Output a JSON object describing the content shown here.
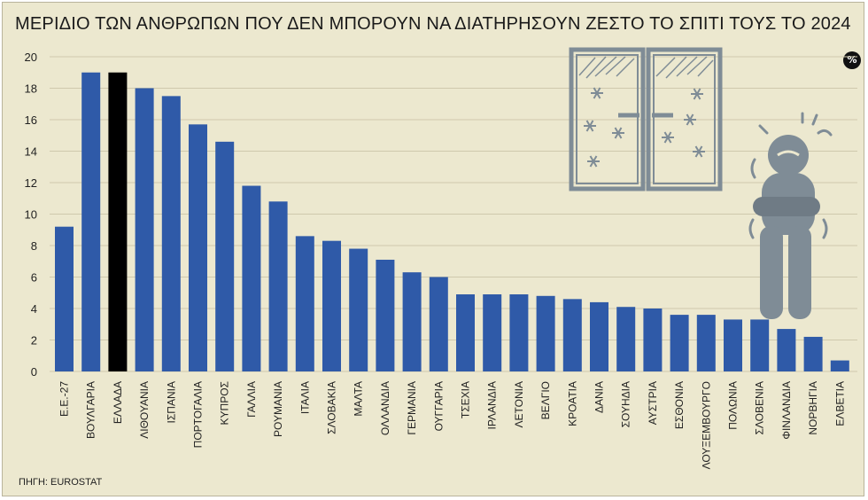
{
  "header": {
    "title": "ΜΕΡΙΔΙΟ ΤΩΝ ΑΝΘΡΩΠΩΝ ΠΟΥ ΔΕΝ ΜΠΟΡΟΥΝ ΝΑ ΔΙΑΤΗΡΗΣΟΥΝ ΖΕΣΤΟ ΤΟ ΣΠΙΤΙ ΤΟΥΣ ΤΟ 2024"
  },
  "footer": {
    "source": "ΠΗΓΗ: EUROSTAT"
  },
  "unit_badge": "%",
  "colors": {
    "bar": "#2f5aa8",
    "highlight": "#000000",
    "background": "#ece8cf",
    "grid": "#cfc9ad",
    "illustration": "#7f8c96"
  },
  "illustration": {
    "icons": [
      "frosted-window-icon",
      "snowflake-icon",
      "cold-person-icon"
    ]
  },
  "chart_data": {
    "type": "bar",
    "title": "ΜΕΡΙΔΙΟ ΤΩΝ ΑΝΘΡΩΠΩΝ ΠΟΥ ΔΕΝ ΜΠΟΡΟΥΝ ΝΑ ΔΙΑΤΗΡΗΣΟΥΝ ΖΕΣΤΟ ΤΟ ΣΠΙΤΙ ΤΟΥΣ ΤΟ 2024",
    "categories": [
      "Ε.Ε.-27",
      "ΒΟΥΛΓΑΡΙΑ",
      "ΕΛΛΑΔΑ",
      "ΛΙΘΟΥΑΝΙΑ",
      "ΙΣΠΑΝΙΑ",
      "ΠΟΡΤΟΓΑΛΙΑ",
      "ΚΥΠΡΟΣ",
      "ΓΑΛΛΙΑ",
      "ΡΟΥΜΑΝΙΑ",
      "ΙΤΑΛΙΑ",
      "ΣΛΟΒΑΚΙΑ",
      "ΜΑΛΤΑ",
      "ΟΛΛΑΝΔΙΑ",
      "ΓΕΡΜΑΝΙΑ",
      "ΟΥΓΓΑΡΙΑ",
      "ΤΣΕΧΙΑ",
      "ΙΡΛΑΝΔΙΑ",
      "ΛΕΤΟΝΙΑ",
      "ΒΕΛΓΙΟ",
      "ΚΡΟΑΤΙΑ",
      "ΔΑΝΙΑ",
      "ΣΟΥΗΔΙΑ",
      "ΑΥΣΤΡΙΑ",
      "ΕΣΘΟΝΙΑ",
      "ΛΟΥΞΕΜΒΟΥΡΓΟ",
      "ΠΟΛΩΝΙΑ",
      "ΣΛΟΒΕΝΙΑ",
      "ΦΙΝΛΑΝΔΙΑ",
      "ΝΟΡΒΗΓΙΑ",
      "ΕΛΒΕΤΙΑ"
    ],
    "values": [
      9.2,
      19.0,
      19.0,
      18.0,
      17.5,
      15.7,
      14.6,
      11.8,
      10.8,
      8.6,
      8.3,
      7.8,
      7.1,
      6.3,
      6.0,
      4.9,
      4.9,
      4.9,
      4.8,
      4.6,
      4.4,
      4.1,
      4.0,
      3.6,
      3.6,
      3.3,
      3.3,
      2.7,
      2.2,
      0.7
    ],
    "highlight": "ΕΛΛΑΔΑ",
    "ylim": [
      0,
      20
    ],
    "yticks": [
      0,
      2,
      4,
      6,
      8,
      10,
      12,
      14,
      16,
      18,
      20
    ],
    "grid": true,
    "unit": "%"
  }
}
